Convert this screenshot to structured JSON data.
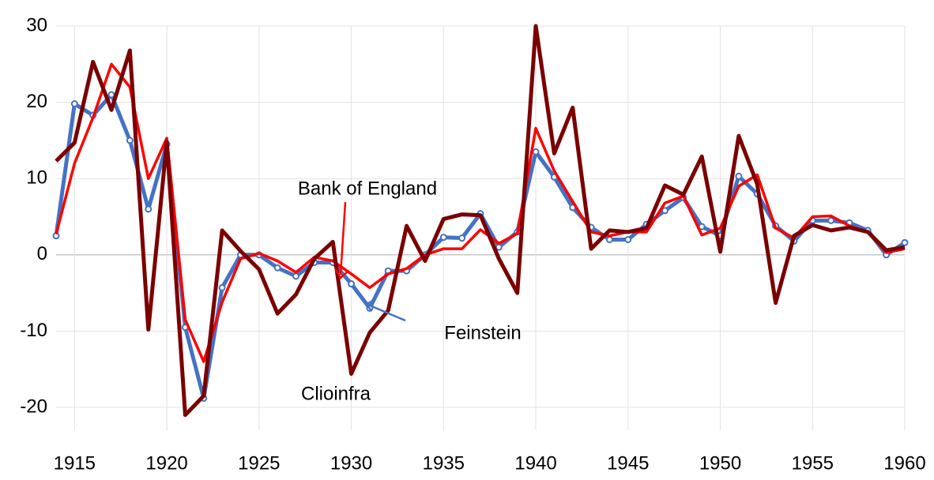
{
  "chart_data": {
    "type": "line",
    "x": [
      1914,
      1915,
      1916,
      1917,
      1918,
      1919,
      1920,
      1921,
      1922,
      1923,
      1924,
      1925,
      1926,
      1927,
      1928,
      1929,
      1930,
      1931,
      1932,
      1933,
      1934,
      1935,
      1936,
      1937,
      1938,
      1939,
      1940,
      1941,
      1942,
      1943,
      1944,
      1945,
      1946,
      1947,
      1948,
      1949,
      1950,
      1951,
      1952,
      1953,
      1954,
      1955,
      1956,
      1957,
      1958,
      1959,
      1960
    ],
    "series": [
      {
        "name": "Feinstein",
        "color": "#4472c4",
        "markers": true,
        "values": [
          2.5,
          19.8,
          18.3,
          21,
          15,
          6,
          14.5,
          -9.5,
          -18.8,
          -4.3,
          0,
          0,
          -1.7,
          -2.8,
          -1,
          -1,
          -3.8,
          -7,
          -2.1,
          -2.1,
          0,
          2.3,
          2.2,
          5.4,
          1,
          3,
          13.5,
          10.2,
          6.2,
          3.6,
          2,
          2,
          4,
          5.8,
          7.5,
          3.7,
          2.5,
          10.3,
          8,
          3.8,
          1.8,
          4.5,
          4.5,
          4.2,
          3.2,
          0,
          1.6
        ]
      },
      {
        "name": "Bank of England",
        "color": "#ff0000",
        "markers": false,
        "values": [
          2.7,
          12,
          18,
          25,
          22,
          10,
          15.3,
          -8.5,
          -14,
          -6.2,
          -0.5,
          0.2,
          -0.8,
          -2.3,
          -0.3,
          -0.8,
          -2.5,
          -4.3,
          -2.5,
          -1.8,
          0,
          0.8,
          0.8,
          3.3,
          1.5,
          2.8,
          16.6,
          11,
          7,
          3,
          2.5,
          3,
          3,
          6.8,
          7.7,
          2.6,
          3.5,
          9,
          10.5,
          3.5,
          2.2,
          5,
          5.1,
          3.8,
          3,
          0.3,
          0.8
        ]
      },
      {
        "name": "Clioinfra",
        "color": "#7b0000",
        "markers": false,
        "values": [
          12.3,
          14.7,
          25.3,
          19,
          26.8,
          -9.8,
          14.8,
          -21,
          -18.5,
          3.2,
          0.5,
          -1.9,
          -7.7,
          -5.2,
          -0.5,
          1.7,
          -15.6,
          -10.2,
          -7.3,
          3.8,
          -0.8,
          4.7,
          5.3,
          5.2,
          -0.5,
          -5,
          30,
          13.3,
          19.3,
          0.8,
          3.2,
          3,
          3.5,
          9.1,
          7.9,
          12.9,
          0.4,
          15.6,
          9.3,
          -6.3,
          2.5,
          3.9,
          3.2,
          3.6,
          3,
          0.6,
          1
        ]
      }
    ],
    "xlim": [
      1914,
      1960
    ],
    "xticks": [
      1915,
      1920,
      1925,
      1930,
      1935,
      1940,
      1945,
      1950,
      1955,
      1960
    ],
    "ylim": [
      -23,
      30
    ],
    "yticks": [
      30,
      20,
      10,
      0,
      -10,
      -20
    ],
    "grid": true
  }
}
